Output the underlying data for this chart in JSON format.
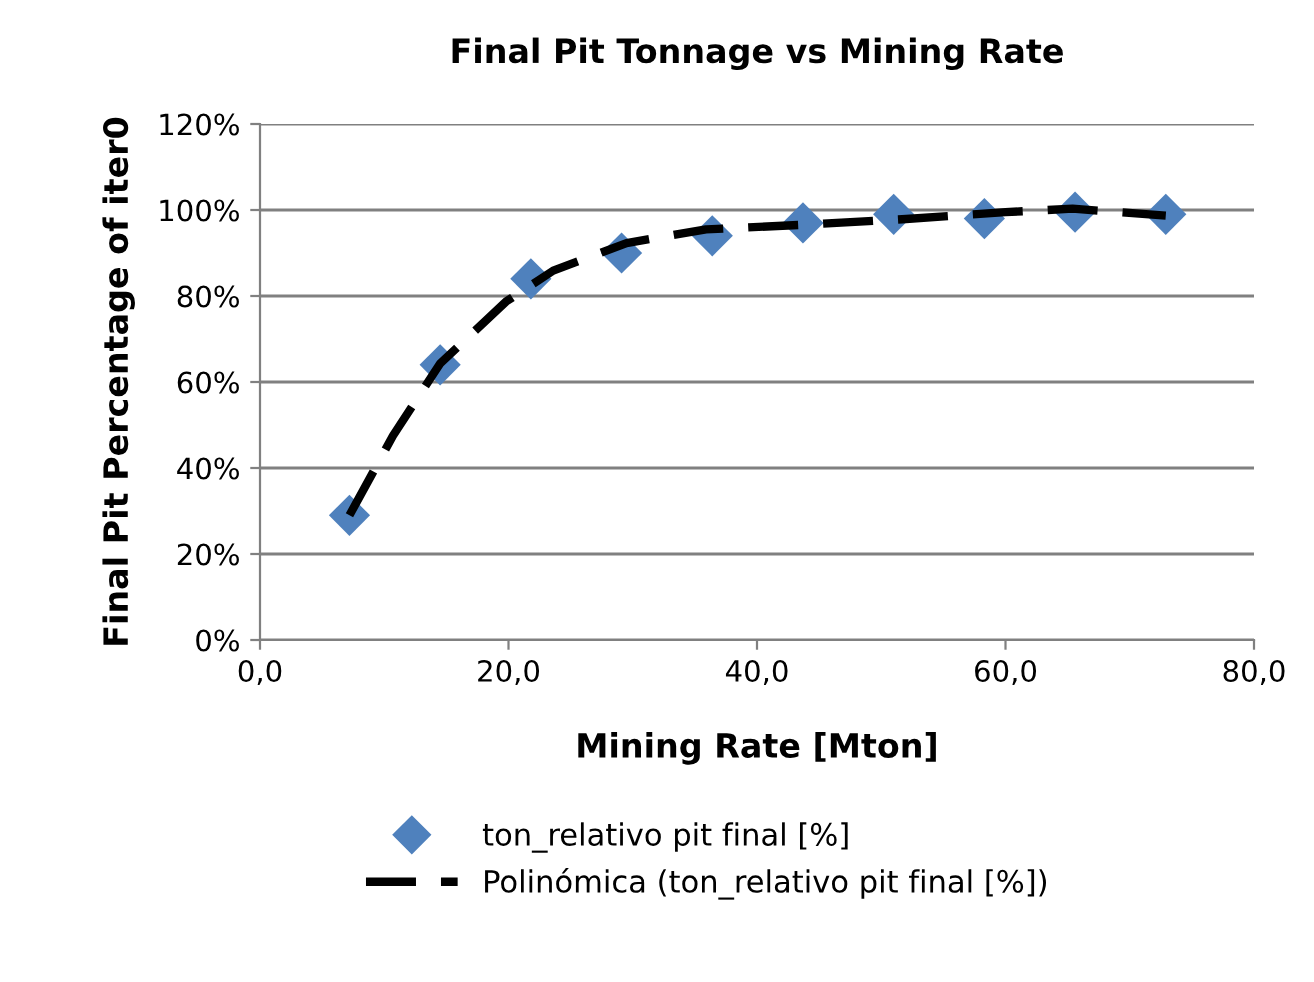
{
  "chart_data": {
    "type": "scatter",
    "title": "Final Pit Tonnage vs Mining Rate",
    "xlabel": "Mining Rate [Mton]",
    "ylabel": "Final Pit Percentage of iter0",
    "series": [
      {
        "name": "ton_relativo pit final [%]",
        "color": "#4f81bd",
        "marker": "diamond",
        "x": [
          7.2,
          14.5,
          21.8,
          29.1,
          36.4,
          43.7,
          51.0,
          58.3,
          65.6,
          72.9
        ],
        "values": [
          29,
          64,
          84,
          90,
          94,
          97,
          99,
          98,
          99.5,
          99
        ]
      },
      {
        "name": "Polinómica (ton_relativo pit final [%])",
        "type": "line",
        "color": "#000000",
        "line_style": "dashed",
        "marker": "none",
        "x": [
          7.2,
          10.7,
          14.5,
          19.8,
          23.6,
          29.5,
          35.9,
          44,
          52,
          60,
          65.4,
          72.9
        ],
        "values": [
          29,
          47.5,
          64.3,
          78.7,
          85.9,
          92.3,
          95.5,
          96.6,
          97.9,
          99.5,
          100.3,
          98.7
        ]
      }
    ],
    "xlim": [
      0,
      80
    ],
    "xticks": [
      {
        "value": 0,
        "label": "0,0"
      },
      {
        "value": 20,
        "label": "20,0"
      },
      {
        "value": 40,
        "label": "40,0"
      },
      {
        "value": 60,
        "label": "60,0"
      },
      {
        "value": 80,
        "label": "80,0"
      }
    ],
    "ylim": [
      0,
      120
    ],
    "yticks": [
      {
        "value": 0,
        "label": "0%"
      },
      {
        "value": 20,
        "label": "20%"
      },
      {
        "value": 40,
        "label": "40%"
      },
      {
        "value": 60,
        "label": "60%"
      },
      {
        "value": 80,
        "label": "80%"
      },
      {
        "value": 100,
        "label": "100%"
      },
      {
        "value": 120,
        "label": "120%"
      }
    ],
    "grid": "y",
    "legend": "bottom"
  }
}
